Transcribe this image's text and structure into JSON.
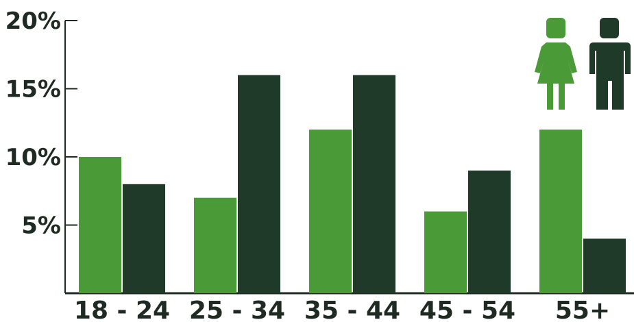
{
  "chart_data": {
    "type": "bar",
    "categories": [
      "18 - 24",
      "25 - 34",
      "35 - 44",
      "45 - 54",
      "55+"
    ],
    "series": [
      {
        "values": [
          10,
          7,
          12,
          6,
          12
        ]
      },
      {
        "values": [
          8,
          16,
          16,
          9,
          4
        ]
      }
    ],
    "y_ticks": [
      "5%",
      "10%",
      "15%",
      "20%"
    ],
    "y_tick_values": [
      5,
      10,
      15,
      20
    ],
    "ylim": [
      0,
      20
    ],
    "legend": {
      "placement": "top-right",
      "items": [
        {
          "icon": "female-figure-icon",
          "color": "#4a9a38"
        },
        {
          "icon": "male-figure-icon",
          "color": "#1f3a28"
        }
      ]
    },
    "colors": [
      "#4a9a38",
      "#1f3a28"
    ],
    "grid": false
  }
}
